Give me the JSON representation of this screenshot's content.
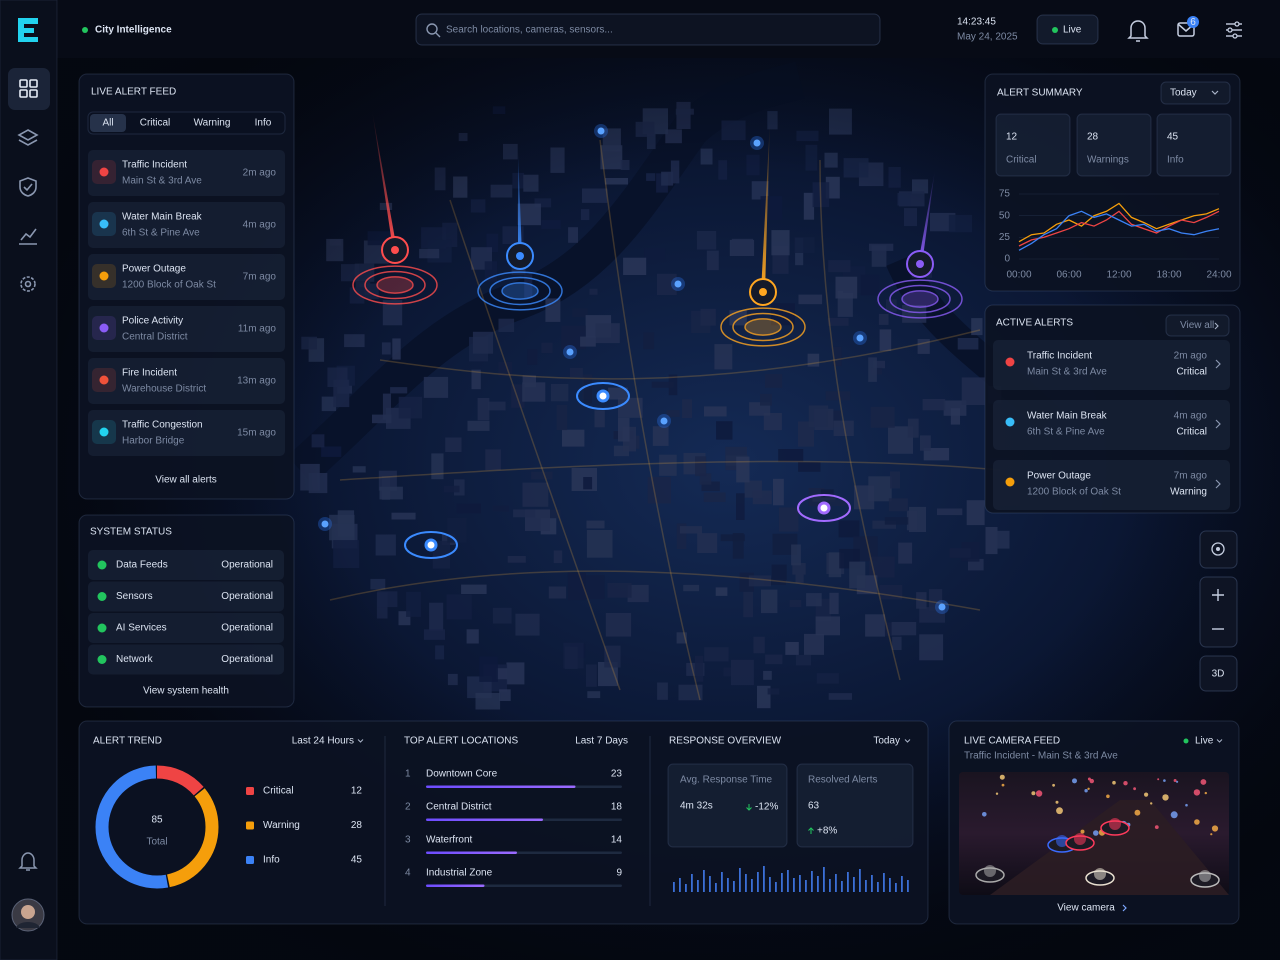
{
  "brand": "City Intelligence",
  "search_placeholder": "Search locations, cameras, sensors...",
  "clock": {
    "time": "14:23:45",
    "date": "May 24, 2025"
  },
  "live_button": "Live",
  "message_badge": 6,
  "live_alert_feed": {
    "title": "LIVE ALERT FEED",
    "tabs": [
      "All",
      "Critical",
      "Warning",
      "Info"
    ],
    "items": [
      {
        "title": "Traffic Incident",
        "location": "Main St & 3rd Ave",
        "time": "2m ago"
      },
      {
        "title": "Water Main Break",
        "location": "6th St & Pine Ave",
        "time": "4m ago"
      },
      {
        "title": "Power Outage",
        "location": "1200 Block of Oak St",
        "time": "7m ago"
      },
      {
        "title": "Police Activity",
        "location": "Central District",
        "time": "11m ago"
      },
      {
        "title": "Fire Incident",
        "location": "Warehouse District",
        "time": "13m ago"
      },
      {
        "title": "Traffic Congestion",
        "location": "Harbor Bridge",
        "time": "15m ago"
      }
    ],
    "footer": "View all alerts"
  },
  "system_status": {
    "title": "SYSTEM STATUS",
    "items": [
      {
        "name": "Data Feeds",
        "status": "Operational"
      },
      {
        "name": "Sensors",
        "status": "Operational"
      },
      {
        "name": "AI Services",
        "status": "Operational"
      },
      {
        "name": "Network",
        "status": "Operational"
      }
    ],
    "footer": "View system health"
  },
  "alert_summary": {
    "title": "ALERT SUMMARY",
    "period": "Today",
    "cards": [
      {
        "value": 12,
        "label": "Critical",
        "color": "#ef4444"
      },
      {
        "value": 28,
        "label": "Warnings",
        "color": "#f59e0b"
      },
      {
        "value": 45,
        "label": "Info",
        "color": "#3b82f6"
      }
    ],
    "chart_data": {
      "type": "line",
      "x": [
        0,
        1.5,
        3,
        4.5,
        6,
        7.5,
        9,
        10.5,
        12,
        13.5,
        15,
        16.5,
        18,
        19.5,
        21,
        22.5,
        24
      ],
      "xlim": [
        0,
        24
      ],
      "xticks": [
        {
          "value": 0,
          "label": "00:00"
        },
        {
          "value": 6,
          "label": "06:00"
        },
        {
          "value": 12,
          "label": "12:00"
        },
        {
          "value": 18,
          "label": "18:00"
        },
        {
          "value": 24,
          "label": "24:00"
        }
      ],
      "ylim": [
        0,
        75
      ],
      "yticks": [
        0,
        25,
        50,
        75
      ],
      "series": [
        {
          "color": "#f59e0b",
          "values": [
            20,
            28,
            30,
            40,
            45,
            38,
            50,
            55,
            64,
            48,
            42,
            35,
            40,
            45,
            50,
            52,
            58
          ]
        },
        {
          "color": "#ef4444",
          "values": [
            15,
            22,
            25,
            30,
            35,
            42,
            38,
            45,
            55,
            40,
            35,
            30,
            38,
            45,
            42,
            48,
            55
          ]
        },
        {
          "color": "#3b82f6",
          "values": [
            10,
            18,
            28,
            35,
            50,
            55,
            48,
            52,
            45,
            38,
            40,
            32,
            35,
            30,
            28,
            32,
            35
          ]
        }
      ]
    }
  },
  "active_alerts": {
    "title": "ACTIVE ALERTS",
    "link": "View all",
    "items": [
      {
        "title": "Traffic Incident",
        "location": "Main St & 3rd Ave",
        "time": "2m ago",
        "severity": "Critical"
      },
      {
        "title": "Water Main Break",
        "location": "6th St & Pine Ave",
        "time": "4m ago",
        "severity": "Critical"
      },
      {
        "title": "Power Outage",
        "location": "1200 Block of Oak St",
        "time": "7m ago",
        "severity": "Warning"
      }
    ]
  },
  "map_controls": {
    "view_mode": "3D"
  },
  "alert_trend": {
    "title": "ALERT TREND",
    "period": "Last 24 Hours",
    "total": 85,
    "total_label": "Total",
    "chart_data": {
      "type": "donut",
      "series": [
        {
          "name": "Critical",
          "color": "#ef4444",
          "value": 12
        },
        {
          "name": "Warning",
          "color": "#f59e0b",
          "value": 28
        },
        {
          "name": "Info",
          "color": "#3b82f6",
          "value": 45
        }
      ]
    }
  },
  "top_alert_locations": {
    "title": "TOP ALERT LOCATIONS",
    "period": "Last 7 Days",
    "rows": [
      {
        "rank": 1,
        "name": "Downtown Core",
        "value": 23
      },
      {
        "rank": 2,
        "name": "Central District",
        "value": 18
      },
      {
        "rank": 3,
        "name": "Waterfront",
        "value": 14
      },
      {
        "rank": 4,
        "name": "Industrial Zone",
        "value": 9
      }
    ]
  },
  "response_overview": {
    "title": "RESPONSE OVERVIEW",
    "period": "Today",
    "avg_label": "Avg. Response Time",
    "avg_value": "4m 32s",
    "avg_change": "-12%",
    "resolved_label": "Resolved Alerts",
    "resolved_value": 63,
    "resolved_change": "+8%",
    "sparkline": {
      "type": "bar",
      "values": [
        10,
        14,
        8,
        18,
        12,
        22,
        16,
        9,
        20,
        14,
        11,
        24,
        18,
        13,
        20,
        26,
        15,
        10,
        19,
        22,
        14,
        17,
        12,
        21,
        16,
        25,
        13,
        18,
        11,
        20,
        15,
        23,
        12,
        17,
        10,
        19,
        14,
        9,
        16,
        12
      ]
    }
  },
  "live_camera": {
    "title": "LIVE CAMERA FEED",
    "subtitle": "Traffic Incident - Main St & 3rd Ave",
    "status": "Live",
    "link": "View camera"
  }
}
